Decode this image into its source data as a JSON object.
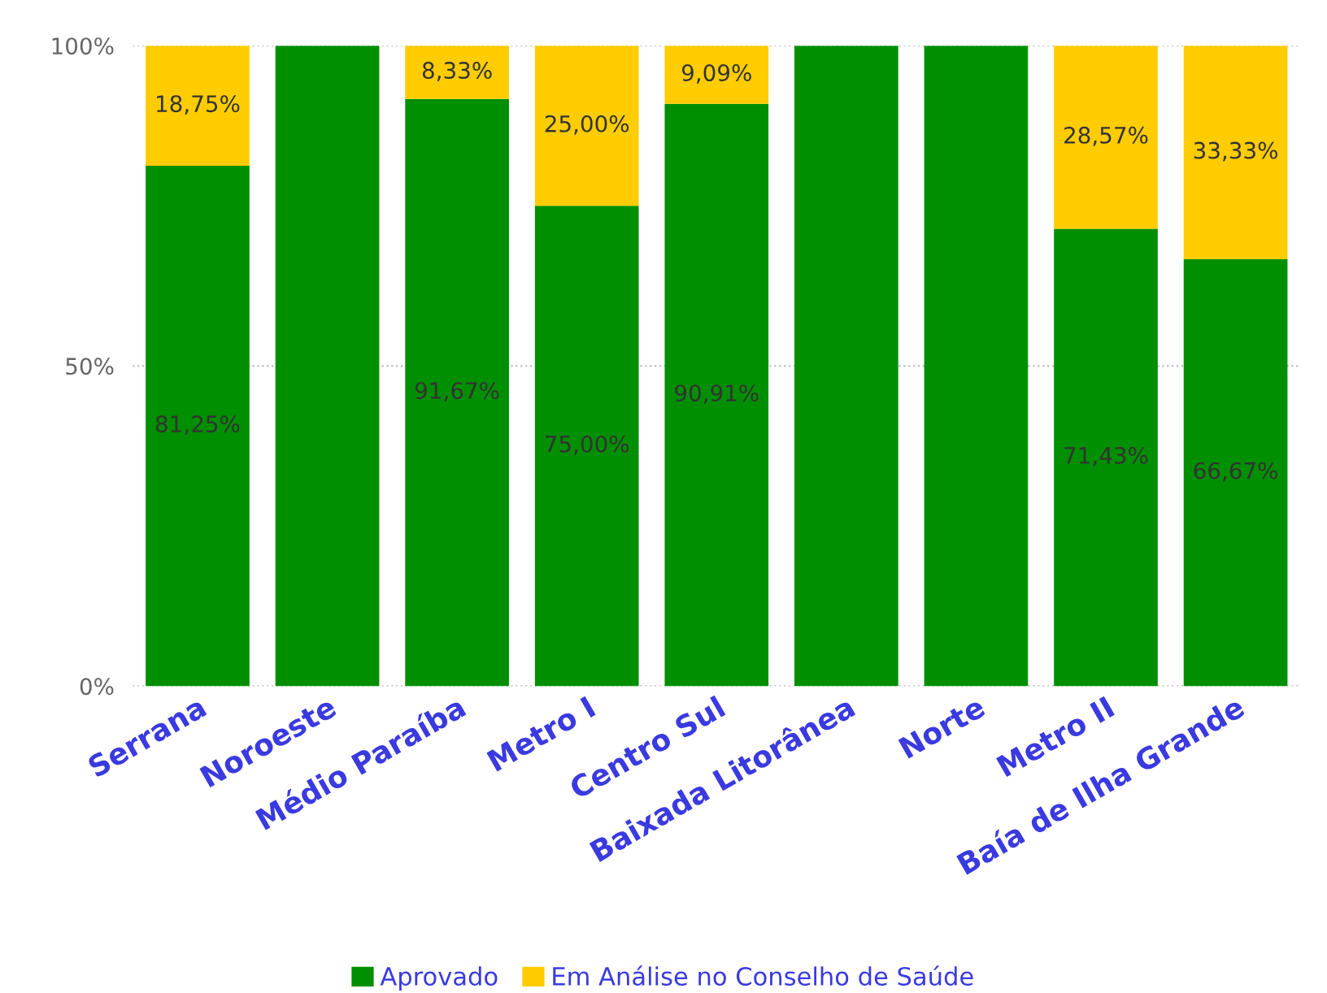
{
  "chart_data": {
    "type": "bar",
    "stacked": true,
    "categories": [
      "Serrana",
      "Noroeste",
      "Médio Paraíba",
      "Metro I",
      "Centro Sul",
      "Baixada Litorânea",
      "Norte",
      "Metro II",
      "Baía de Ilha Grande"
    ],
    "series": [
      {
        "name": "Aprovado",
        "color": "#008f00",
        "values": [
          81.25,
          100,
          91.67,
          75.0,
          90.91,
          100,
          100,
          71.43,
          66.67
        ],
        "value_labels": [
          "81,25%",
          null,
          "91,67%",
          "75,00%",
          "90,91%",
          null,
          null,
          "71,43%",
          "66,67%"
        ]
      },
      {
        "name": "Em Análise no Conselho de Saúde",
        "color": "#ffcc00",
        "values": [
          18.75,
          0,
          8.33,
          25.0,
          9.09,
          0,
          0,
          28.57,
          33.33
        ],
        "value_labels": [
          "18,75%",
          null,
          "8,33%",
          "25,00%",
          "9,09%",
          null,
          null,
          "28,57%",
          "33,33%"
        ]
      }
    ],
    "ylim": [
      0,
      100
    ],
    "yticks": [
      {
        "value": 0,
        "label": "0%"
      },
      {
        "value": 50,
        "label": "50%"
      },
      {
        "value": 100,
        "label": "100%"
      }
    ],
    "grid": "y",
    "legend": "bottom"
  }
}
